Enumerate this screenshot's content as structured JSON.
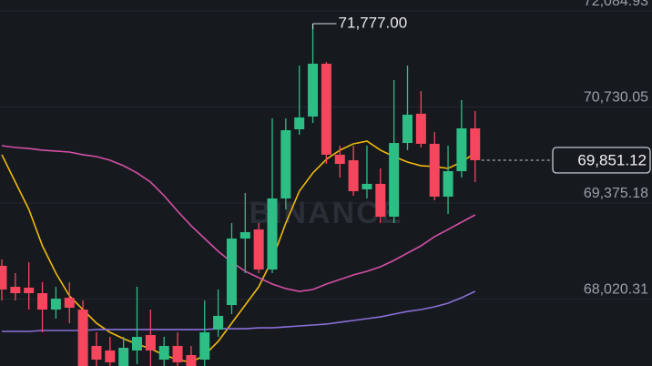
{
  "chart_data": {
    "type": "candlestick",
    "watermark": "BINANCE",
    "up_color": "#2ebd85",
    "down_color": "#f6465d",
    "open": [
      68361,
      68065,
      68053,
      67975,
      67744,
      67911,
      67744,
      67231,
      67167,
      66920,
      67167,
      67385,
      67038,
      67231,
      67102,
      67038,
      67462,
      67808,
      68746,
      68874,
      68309,
      69311,
      70287,
      70467,
      71212,
      69928,
      69850,
      69440,
      69517,
      69054,
      70094,
      70506,
      70082,
      69337,
      69696,
      70300
    ],
    "high": [
      68451,
      68258,
      68412,
      68130,
      68065,
      68130,
      67873,
      67423,
      67359,
      67359,
      68065,
      67744,
      67359,
      67423,
      67231,
      67873,
      68027,
      68964,
      69388,
      68964,
      70441,
      70441,
      71186,
      71777,
      71237,
      70056,
      70056,
      70056,
      69735,
      70980,
      71186,
      70826,
      70249,
      70056,
      70698,
      70544
    ],
    "low": [
      67873,
      67873,
      67744,
      67423,
      67616,
      67552,
      66948,
      66880,
      66870,
      66900,
      66974,
      66930,
      66920,
      66900,
      66880,
      66900,
      67359,
      67680,
      68258,
      68258,
      68258,
      69157,
      70210,
      70377,
      69799,
      69606,
      69350,
      69311,
      68964,
      68964,
      69992,
      70030,
      69285,
      69093,
      69606,
      69542
    ],
    "close": [
      68027,
      67975,
      67975,
      67744,
      67898,
      67770,
      66948,
      67038,
      67000,
      67205,
      67359,
      67167,
      67231,
      67000,
      66940,
      67423,
      67655,
      68746,
      68836,
      68309,
      69311,
      70274,
      70454,
      71212,
      69928,
      69799,
      69414,
      69517,
      69054,
      70094,
      70493,
      70082,
      69337,
      69696,
      70300,
      69851.12
    ],
    "series": [
      {
        "color": "#f0b90b",
        "values": [
          69928,
          69542,
          69157,
          68643,
          68258,
          67937,
          67744,
          67552,
          67423,
          67333,
          67256,
          67192,
          67102,
          67038,
          67000,
          67102,
          67295,
          67552,
          67808,
          68065,
          68451,
          68964,
          69414,
          69671,
          69863,
          69992,
          70082,
          70120,
          69992,
          69902,
          69825,
          69773,
          69761,
          69735,
          69825,
          69953
        ]
      },
      {
        "color": "#d44fa6",
        "values": [
          70056,
          70030,
          70017,
          69992,
          69979,
          69966,
          69928,
          69902,
          69850,
          69773,
          69671,
          69542,
          69350,
          69131,
          68926,
          68746,
          68566,
          68412,
          68284,
          68194,
          68104,
          68040,
          68001,
          68027,
          68104,
          68168,
          68232,
          68284,
          68348,
          68438,
          68541,
          68643,
          68772,
          68874,
          68977,
          69080
        ]
      },
      {
        "color": "#8a6fd8",
        "values": [
          67436,
          67436,
          67436,
          67449,
          67449,
          67449,
          67449,
          67462,
          67462,
          67462,
          67462,
          67462,
          67462,
          67462,
          67462,
          67462,
          67474,
          67474,
          67474,
          67487,
          67487,
          67500,
          67513,
          67526,
          67539,
          67565,
          67590,
          67616,
          67641,
          67680,
          67718,
          67744,
          67783,
          67834,
          67911,
          68001
        ]
      }
    ],
    "ylim": [
      66948,
      72110.6
    ],
    "yticks": [
      {
        "value": 72084.93,
        "label": "72,084.93"
      },
      {
        "value": 70730.05,
        "label": "70,730.05"
      },
      {
        "value": 69375.18,
        "label": "69,375.18"
      },
      {
        "value": 68020.31,
        "label": "68,020.31"
      }
    ],
    "grid": true,
    "high_marker": {
      "value": 71777,
      "label": "71,777.00"
    },
    "last_price": {
      "value": 69851.12,
      "label": "69,851.12"
    }
  }
}
